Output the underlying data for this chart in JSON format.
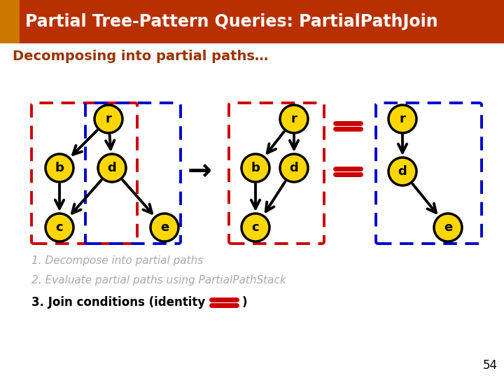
{
  "title": "Partial Tree-Pattern Queries: PartialPathJoin",
  "subtitle": "Decomposing into partial paths…",
  "title_bg": "#B83000",
  "title_fg": "#ffffff",
  "subtitle_fg": "#993300",
  "node_fill": "#FFD700",
  "node_edge": "#000000",
  "red_dash": "#CC0000",
  "blue_dash": "#0000CC",
  "slide_bg": "#ffffff",
  "equal_color": "#CC0000",
  "bullet1": "1. Decompose into partial paths",
  "bullet2": "2. Evaluate partial paths using PartialPathStack",
  "bullet3_pre": "3. Join conditions (identity ",
  "bullet3_post": ")",
  "page_num": "54",
  "accent_color": "#CC7700",
  "node_r": 20
}
